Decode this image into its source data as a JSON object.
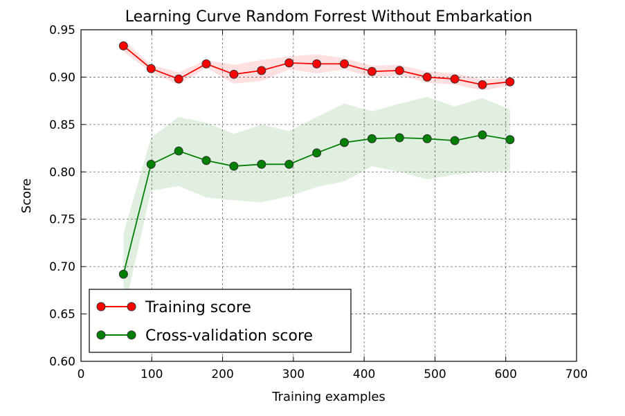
{
  "chart_data": {
    "type": "line",
    "title": "Learning Curve Random Forrest Without Embarkation",
    "xlabel": "Training examples",
    "ylabel": "Score",
    "xlim": [
      0,
      700
    ],
    "ylim": [
      0.6,
      0.95
    ],
    "xticks": [
      0,
      100,
      200,
      300,
      400,
      500,
      600,
      700
    ],
    "yticks": [
      0.6,
      0.65,
      0.7,
      0.75,
      0.8,
      0.85,
      0.9,
      0.95
    ],
    "xtick_labels": [
      "0",
      "100",
      "200",
      "300",
      "400",
      "500",
      "600",
      "700"
    ],
    "ytick_labels": [
      "0.60",
      "0.65",
      "0.70",
      "0.75",
      "0.80",
      "0.85",
      "0.90",
      "0.95"
    ],
    "grid": true,
    "legend_position": "lower-left",
    "x": [
      60,
      99,
      138,
      177,
      216,
      255,
      294,
      333,
      372,
      411,
      450,
      489,
      528,
      567,
      606
    ],
    "series": [
      {
        "name": "Training score",
        "color": "#ff0000",
        "fill_color": "#ff0000",
        "values": [
          0.933,
          0.909,
          0.898,
          0.914,
          0.903,
          0.907,
          0.915,
          0.914,
          0.914,
          0.906,
          0.907,
          0.9,
          0.898,
          0.892,
          0.895
        ],
        "band_upper": [
          0.939,
          0.913,
          0.905,
          0.918,
          0.913,
          0.918,
          0.922,
          0.924,
          0.92,
          0.912,
          0.913,
          0.906,
          0.904,
          0.898,
          0.899
        ],
        "band_lower": [
          0.927,
          0.905,
          0.892,
          0.91,
          0.893,
          0.896,
          0.908,
          0.904,
          0.908,
          0.9,
          0.902,
          0.894,
          0.892,
          0.886,
          0.891
        ]
      },
      {
        "name": "Cross-validation score",
        "color": "#007f00",
        "fill_color": "#007f00",
        "values": [
          0.692,
          0.808,
          0.822,
          0.812,
          0.806,
          0.808,
          0.808,
          0.82,
          0.831,
          0.835,
          0.836,
          0.835,
          0.833,
          0.839,
          0.834
        ],
        "band_upper": [
          0.735,
          0.836,
          0.858,
          0.852,
          0.84,
          0.85,
          0.843,
          0.858,
          0.872,
          0.864,
          0.872,
          0.879,
          0.869,
          0.878,
          0.866
        ],
        "band_lower": [
          0.65,
          0.78,
          0.785,
          0.773,
          0.77,
          0.768,
          0.774,
          0.784,
          0.79,
          0.806,
          0.8,
          0.792,
          0.797,
          0.8,
          0.801
        ]
      }
    ]
  }
}
